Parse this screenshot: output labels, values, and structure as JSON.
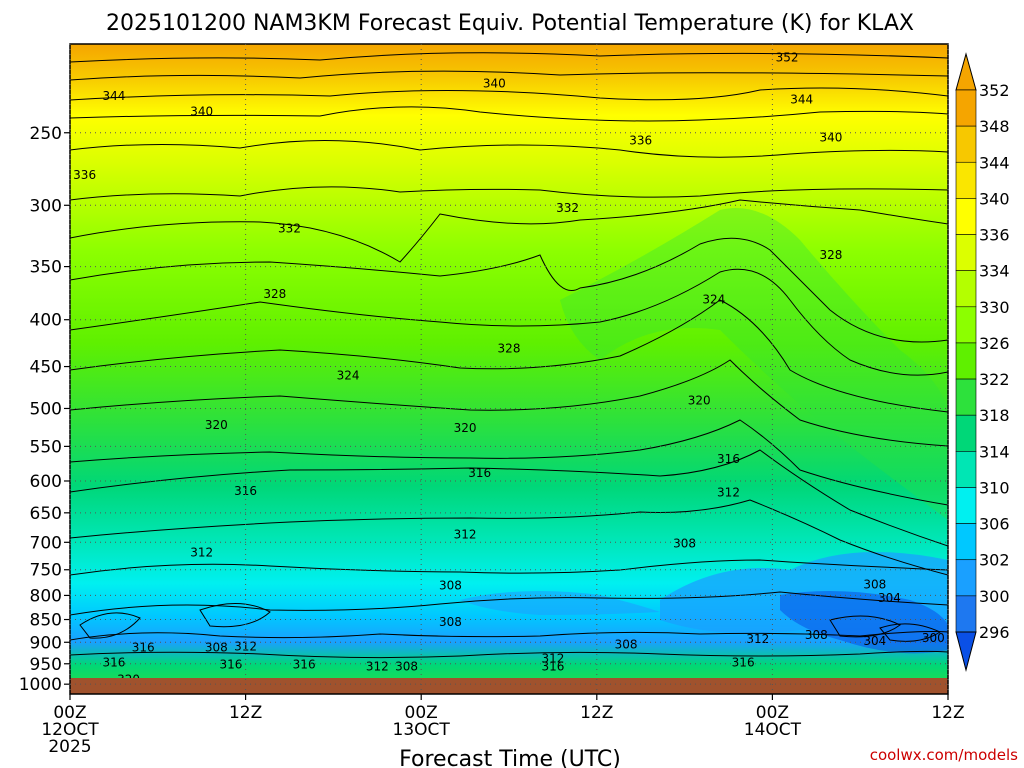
{
  "chart_data": {
    "type": "contour",
    "title": "2025101200 NAM3KM Forecast Equiv. Potential Temperature (K) for KLAX",
    "xlabel": "Forecast Time (UTC)",
    "ylabel": "",
    "x_ticks": [
      {
        "hour": 0,
        "line1": "00Z",
        "line2": "12OCT",
        "line3": "2025"
      },
      {
        "hour": 12,
        "line1": "12Z",
        "line2": "",
        "line3": ""
      },
      {
        "hour": 24,
        "line1": "00Z",
        "line2": "13OCT",
        "line3": ""
      },
      {
        "hour": 36,
        "line1": "12Z",
        "line2": "",
        "line3": ""
      },
      {
        "hour": 48,
        "line1": "00Z",
        "line2": "14OCT",
        "line3": ""
      },
      {
        "hour": 60,
        "line1": "12Z",
        "line2": "",
        "line3": ""
      }
    ],
    "xlim": [
      0,
      60
    ],
    "y_scale": "log-pressure (hPa)",
    "y_ticks": [
      250,
      300,
      350,
      400,
      450,
      500,
      550,
      600,
      650,
      700,
      750,
      800,
      850,
      900,
      950,
      1000
    ],
    "ylim": [
      1025,
      200
    ],
    "colorbar_levels": [
      352,
      348,
      344,
      340,
      336,
      334,
      330,
      326,
      322,
      318,
      314,
      310,
      306,
      302,
      300,
      296
    ],
    "colorbar_colors": [
      "#f5a500",
      "#f7c800",
      "#fae600",
      "#ffff00",
      "#dcff00",
      "#b4ff00",
      "#8cff00",
      "#5ff000",
      "#2de13c",
      "#00d778",
      "#00e6b4",
      "#00f0f0",
      "#00c8ff",
      "#1aa0ff",
      "#1e78f0",
      "#0a50e6"
    ],
    "contour_labels": [
      {
        "text": "352",
        "hour": 49,
        "p": 207
      },
      {
        "text": "344",
        "hour": 3,
        "p": 228
      },
      {
        "text": "344",
        "hour": 50,
        "p": 230
      },
      {
        "text": "340",
        "hour": 29,
        "p": 221
      },
      {
        "text": "340",
        "hour": 9,
        "p": 237
      },
      {
        "text": "340",
        "hour": 52,
        "p": 253
      },
      {
        "text": "336",
        "hour": 39,
        "p": 255
      },
      {
        "text": "336",
        "hour": 1,
        "p": 278
      },
      {
        "text": "332",
        "hour": 34,
        "p": 302
      },
      {
        "text": "332",
        "hour": 15,
        "p": 318
      },
      {
        "text": "328",
        "hour": 52,
        "p": 340
      },
      {
        "text": "328",
        "hour": 14,
        "p": 375
      },
      {
        "text": "328",
        "hour": 30,
        "p": 430
      },
      {
        "text": "324",
        "hour": 44,
        "p": 380
      },
      {
        "text": "324",
        "hour": 19,
        "p": 460
      },
      {
        "text": "320",
        "hour": 43,
        "p": 490
      },
      {
        "text": "320",
        "hour": 10,
        "p": 521
      },
      {
        "text": "320",
        "hour": 27,
        "p": 525
      },
      {
        "text": "316",
        "hour": 45,
        "p": 568
      },
      {
        "text": "316",
        "hour": 28,
        "p": 588
      },
      {
        "text": "316",
        "hour": 12,
        "p": 615
      },
      {
        "text": "312",
        "hour": 45,
        "p": 618
      },
      {
        "text": "312",
        "hour": 27,
        "p": 686
      },
      {
        "text": "312",
        "hour": 9,
        "p": 718
      },
      {
        "text": "308",
        "hour": 42,
        "p": 702
      },
      {
        "text": "308",
        "hour": 26,
        "p": 780
      },
      {
        "text": "308",
        "hour": 26,
        "p": 855
      },
      {
        "text": "308",
        "hour": 55,
        "p": 778
      },
      {
        "text": "304",
        "hour": 56,
        "p": 805
      },
      {
        "text": "308",
        "hour": 38,
        "p": 905
      },
      {
        "text": "312",
        "hour": 47,
        "p": 893
      },
      {
        "text": "308",
        "hour": 51,
        "p": 884
      },
      {
        "text": "304",
        "hour": 55,
        "p": 897
      },
      {
        "text": "300",
        "hour": 59,
        "p": 890
      },
      {
        "text": "316",
        "hour": 5,
        "p": 912
      },
      {
        "text": "308",
        "hour": 10,
        "p": 912
      },
      {
        "text": "312",
        "hour": 12,
        "p": 910
      },
      {
        "text": "316",
        "hour": 3,
        "p": 947
      },
      {
        "text": "316",
        "hour": 11,
        "p": 952
      },
      {
        "text": "316",
        "hour": 16,
        "p": 952
      },
      {
        "text": "312",
        "hour": 21,
        "p": 957
      },
      {
        "text": "308",
        "hour": 23,
        "p": 957
      },
      {
        "text": "312",
        "hour": 33,
        "p": 938
      },
      {
        "text": "316",
        "hour": 33,
        "p": 957
      },
      {
        "text": "316",
        "hour": 46,
        "p": 947
      },
      {
        "text": "320",
        "hour": 4,
        "p": 988
      }
    ],
    "legend": "colorbar-right"
  },
  "watermark": "coolwx.com/models"
}
